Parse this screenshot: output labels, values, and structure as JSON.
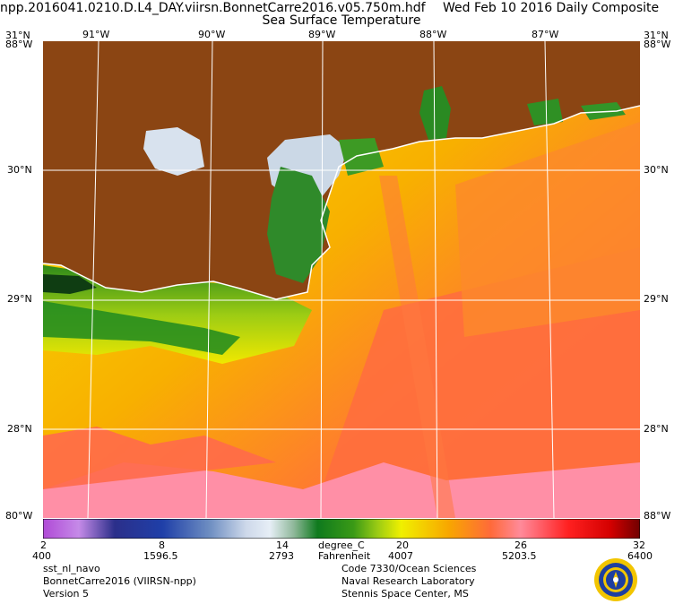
{
  "header": {
    "filename": "npp.2016041.0210.D.L4_DAY.viirsn.BonnetCarre2016.v05.750m.hdf",
    "date": "Wed Feb 10 2016 Daily Composite",
    "product": "Sea Surface Temperature"
  },
  "map": {
    "lon_labels": [
      "91°W",
      "90°W",
      "89°W",
      "88°W",
      "87°W"
    ],
    "lat_labels": [
      "30°N",
      "29°N",
      "28°N"
    ],
    "corner_top_left": "31°N",
    "corner_top_left_lon": "88°W",
    "corner_top_right": "31°N",
    "corner_top_right_lon": "88°W",
    "corner_bottom_left": "80°W",
    "corner_bottom_right": "88°W",
    "colors": {
      "land": "#8b4513",
      "grid": "#ffffff"
    }
  },
  "colorbar": {
    "celsius_ticks": [
      "2",
      "8",
      "14",
      "20",
      "26",
      "32"
    ],
    "fahrenheit_ticks": [
      "400",
      "1596.5",
      "2793",
      "4007",
      "5203.5",
      "6400"
    ],
    "unit_c": "degree_C",
    "unit_f": "Fahrenheit",
    "stops": [
      "#b04ad6",
      "#c58ae8",
      "#2b2f8a",
      "#1f3fa8",
      "#6f8fc2",
      "#cdd8ea",
      "#e6eef6",
      "#8fb89a",
      "#0f7a1e",
      "#3a9a16",
      "#9acb14",
      "#f0f000",
      "#f8a600",
      "#ff6a3a",
      "#ff8a9a",
      "#ff2020",
      "#d40000",
      "#700000"
    ]
  },
  "info_left": [
    "sst_nl_navo",
    "BonnetCarre2016 (VIIRSN-npp)",
    "Version 5"
  ],
  "info_right": [
    "Code 7330/Ocean Sciences",
    "Naval Research Laboratory",
    "Stennis Space Center, MS"
  ],
  "logo_icon": "navy-seal-icon"
}
